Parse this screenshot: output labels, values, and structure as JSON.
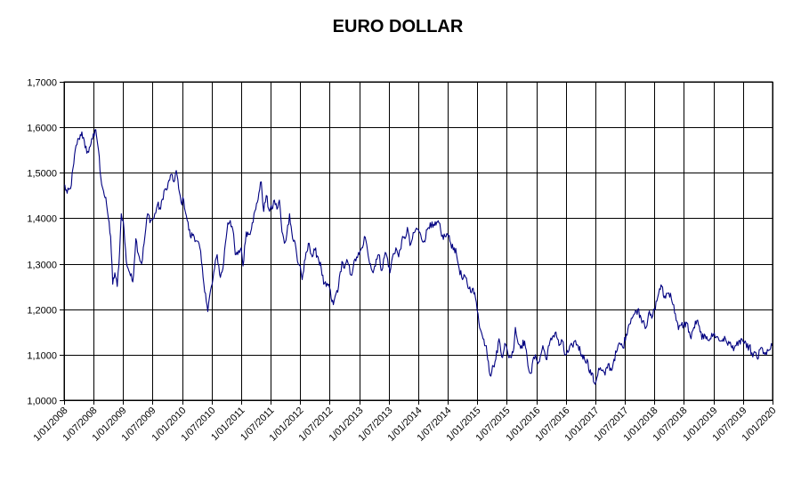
{
  "chart_data": {
    "type": "line",
    "title": "EURO DOLLAR",
    "xlabel": "",
    "ylabel": "",
    "ylim": [
      1.0,
      1.7
    ],
    "xlim": [
      "2008-01-01",
      "2020-01-01"
    ],
    "grid": true,
    "y_ticks": [
      1.0,
      1.1,
      1.2,
      1.3,
      1.4,
      1.5,
      1.6,
      1.7
    ],
    "y_tick_labels": [
      "1,0000",
      "1,1000",
      "1,2000",
      "1,3000",
      "1,4000",
      "1,5000",
      "1,6000",
      "1,7000"
    ],
    "x_ticks": [
      "2008-01-01",
      "2008-07-01",
      "2009-01-01",
      "2009-07-01",
      "2010-01-01",
      "2010-07-01",
      "2011-01-01",
      "2011-07-01",
      "2012-01-01",
      "2012-07-01",
      "2013-01-01",
      "2013-07-01",
      "2014-01-01",
      "2014-07-01",
      "2015-01-01",
      "2015-07-01",
      "2016-01-01",
      "2016-07-01",
      "2017-01-01",
      "2017-07-01",
      "2018-01-01",
      "2018-07-01",
      "2019-01-01",
      "2019-07-01",
      "2020-01-01"
    ],
    "x_tick_labels": [
      "1/01/2008",
      "1/07/2008",
      "1/01/2009",
      "1/07/2009",
      "1/01/2010",
      "1/07/2010",
      "1/01/2011",
      "1/07/2011",
      "1/01/2012",
      "1/07/2012",
      "1/01/2013",
      "1/07/2013",
      "1/01/2014",
      "1/07/2014",
      "1/01/2015",
      "1/07/2015",
      "1/01/2016",
      "1/07/2016",
      "1/01/2017",
      "1/07/2017",
      "1/01/2018",
      "1/07/2018",
      "1/01/2019",
      "1/07/2019",
      "1/01/2020"
    ],
    "series": [
      {
        "color": "#000080",
        "points": [
          [
            "2008-01-01",
            1.475
          ],
          [
            "2008-01-20",
            1.455
          ],
          [
            "2008-02-10",
            1.465
          ],
          [
            "2008-03-01",
            1.52
          ],
          [
            "2008-03-15",
            1.56
          ],
          [
            "2008-04-01",
            1.575
          ],
          [
            "2008-04-20",
            1.59
          ],
          [
            "2008-05-10",
            1.555
          ],
          [
            "2008-06-01",
            1.545
          ],
          [
            "2008-06-20",
            1.575
          ],
          [
            "2008-07-05",
            1.58
          ],
          [
            "2008-07-15",
            1.595
          ],
          [
            "2008-08-01",
            1.55
          ],
          [
            "2008-08-15",
            1.49
          ],
          [
            "2008-09-01",
            1.46
          ],
          [
            "2008-09-20",
            1.43
          ],
          [
            "2008-10-01",
            1.4
          ],
          [
            "2008-10-15",
            1.36
          ],
          [
            "2008-10-28",
            1.255
          ],
          [
            "2008-11-10",
            1.28
          ],
          [
            "2008-11-25",
            1.25
          ],
          [
            "2008-12-10",
            1.33
          ],
          [
            "2008-12-20",
            1.41
          ],
          [
            "2009-01-01",
            1.395
          ],
          [
            "2009-01-20",
            1.305
          ],
          [
            "2009-02-10",
            1.28
          ],
          [
            "2009-03-01",
            1.26
          ],
          [
            "2009-03-20",
            1.355
          ],
          [
            "2009-04-10",
            1.315
          ],
          [
            "2009-04-25",
            1.3
          ],
          [
            "2009-05-15",
            1.36
          ],
          [
            "2009-06-01",
            1.41
          ],
          [
            "2009-06-20",
            1.395
          ],
          [
            "2009-07-10",
            1.4
          ],
          [
            "2009-08-01",
            1.43
          ],
          [
            "2009-08-20",
            1.42
          ],
          [
            "2009-09-10",
            1.46
          ],
          [
            "2009-10-01",
            1.465
          ],
          [
            "2009-10-20",
            1.495
          ],
          [
            "2009-11-10",
            1.48
          ],
          [
            "2009-11-25",
            1.505
          ],
          [
            "2009-12-10",
            1.465
          ],
          [
            "2009-12-25",
            1.435
          ],
          [
            "2010-01-10",
            1.44
          ],
          [
            "2010-02-01",
            1.395
          ],
          [
            "2010-02-20",
            1.36
          ],
          [
            "2010-03-10",
            1.365
          ],
          [
            "2010-04-01",
            1.35
          ],
          [
            "2010-04-20",
            1.335
          ],
          [
            "2010-05-10",
            1.27
          ],
          [
            "2010-05-25",
            1.235
          ],
          [
            "2010-06-08",
            1.195
          ],
          [
            "2010-06-20",
            1.23
          ],
          [
            "2010-07-05",
            1.255
          ],
          [
            "2010-07-20",
            1.29
          ],
          [
            "2010-08-05",
            1.32
          ],
          [
            "2010-08-25",
            1.27
          ],
          [
            "2010-09-10",
            1.29
          ],
          [
            "2010-09-25",
            1.345
          ],
          [
            "2010-10-10",
            1.39
          ],
          [
            "2010-10-25",
            1.395
          ],
          [
            "2010-11-10",
            1.375
          ],
          [
            "2010-11-25",
            1.32
          ],
          [
            "2010-12-10",
            1.32
          ],
          [
            "2011-01-01",
            1.335
          ],
          [
            "2011-01-12",
            1.295
          ],
          [
            "2011-02-01",
            1.37
          ],
          [
            "2011-02-20",
            1.365
          ],
          [
            "2011-03-10",
            1.39
          ],
          [
            "2011-04-01",
            1.42
          ],
          [
            "2011-04-20",
            1.455
          ],
          [
            "2011-05-05",
            1.48
          ],
          [
            "2011-05-20",
            1.415
          ],
          [
            "2011-06-05",
            1.45
          ],
          [
            "2011-06-20",
            1.42
          ],
          [
            "2011-07-10",
            1.42
          ],
          [
            "2011-07-25",
            1.44
          ],
          [
            "2011-08-10",
            1.42
          ],
          [
            "2011-08-25",
            1.44
          ],
          [
            "2011-09-10",
            1.37
          ],
          [
            "2011-09-25",
            1.345
          ],
          [
            "2011-10-10",
            1.365
          ],
          [
            "2011-10-27",
            1.41
          ],
          [
            "2011-11-15",
            1.355
          ],
          [
            "2011-12-01",
            1.345
          ],
          [
            "2011-12-15",
            1.305
          ],
          [
            "2012-01-01",
            1.295
          ],
          [
            "2012-01-13",
            1.265
          ],
          [
            "2012-02-01",
            1.31
          ],
          [
            "2012-02-25",
            1.345
          ],
          [
            "2012-03-15",
            1.315
          ],
          [
            "2012-04-01",
            1.33
          ],
          [
            "2012-04-20",
            1.315
          ],
          [
            "2012-05-10",
            1.29
          ],
          [
            "2012-05-25",
            1.255
          ],
          [
            "2012-06-10",
            1.25
          ],
          [
            "2012-06-25",
            1.255
          ],
          [
            "2012-07-10",
            1.225
          ],
          [
            "2012-07-24",
            1.21
          ],
          [
            "2012-08-10",
            1.235
          ],
          [
            "2012-08-25",
            1.25
          ],
          [
            "2012-09-15",
            1.305
          ],
          [
            "2012-10-01",
            1.29
          ],
          [
            "2012-10-20",
            1.305
          ],
          [
            "2012-11-10",
            1.275
          ],
          [
            "2012-11-25",
            1.295
          ],
          [
            "2012-12-15",
            1.315
          ],
          [
            "2013-01-01",
            1.32
          ],
          [
            "2013-01-20",
            1.335
          ],
          [
            "2013-02-01",
            1.36
          ],
          [
            "2013-02-20",
            1.33
          ],
          [
            "2013-03-10",
            1.3
          ],
          [
            "2013-03-27",
            1.28
          ],
          [
            "2013-04-15",
            1.31
          ],
          [
            "2013-05-01",
            1.32
          ],
          [
            "2013-05-20",
            1.285
          ],
          [
            "2013-06-10",
            1.325
          ],
          [
            "2013-06-25",
            1.31
          ],
          [
            "2013-07-09",
            1.28
          ],
          [
            "2013-07-25",
            1.315
          ],
          [
            "2013-08-15",
            1.335
          ],
          [
            "2013-09-01",
            1.315
          ],
          [
            "2013-09-20",
            1.35
          ],
          [
            "2013-10-10",
            1.355
          ],
          [
            "2013-10-25",
            1.38
          ],
          [
            "2013-11-10",
            1.34
          ],
          [
            "2013-11-25",
            1.355
          ],
          [
            "2013-12-15",
            1.375
          ],
          [
            "2014-01-01",
            1.375
          ],
          [
            "2014-01-20",
            1.355
          ],
          [
            "2014-02-05",
            1.35
          ],
          [
            "2014-02-25",
            1.375
          ],
          [
            "2014-03-15",
            1.39
          ],
          [
            "2014-04-01",
            1.38
          ],
          [
            "2014-04-20",
            1.385
          ],
          [
            "2014-05-08",
            1.39
          ],
          [
            "2014-05-25",
            1.36
          ],
          [
            "2014-06-15",
            1.36
          ],
          [
            "2014-07-01",
            1.365
          ],
          [
            "2014-07-20",
            1.345
          ],
          [
            "2014-08-10",
            1.335
          ],
          [
            "2014-08-25",
            1.32
          ],
          [
            "2014-09-10",
            1.29
          ],
          [
            "2014-10-01",
            1.265
          ],
          [
            "2014-10-20",
            1.27
          ],
          [
            "2014-11-10",
            1.245
          ],
          [
            "2014-12-01",
            1.245
          ],
          [
            "2014-12-20",
            1.225
          ],
          [
            "2015-01-05",
            1.19
          ],
          [
            "2015-01-20",
            1.155
          ],
          [
            "2015-02-05",
            1.135
          ],
          [
            "2015-02-25",
            1.12
          ],
          [
            "2015-03-10",
            1.085
          ],
          [
            "2015-03-20",
            1.055
          ],
          [
            "2015-04-10",
            1.075
          ],
          [
            "2015-04-25",
            1.09
          ],
          [
            "2015-05-15",
            1.135
          ],
          [
            "2015-06-01",
            1.095
          ],
          [
            "2015-06-20",
            1.125
          ],
          [
            "2015-07-10",
            1.1
          ],
          [
            "2015-07-25",
            1.095
          ],
          [
            "2015-08-10",
            1.105
          ],
          [
            "2015-08-24",
            1.16
          ],
          [
            "2015-09-10",
            1.125
          ],
          [
            "2015-10-01",
            1.12
          ],
          [
            "2015-10-20",
            1.13
          ],
          [
            "2015-11-10",
            1.075
          ],
          [
            "2015-12-02",
            1.06
          ],
          [
            "2015-12-15",
            1.095
          ],
          [
            "2016-01-01",
            1.09
          ],
          [
            "2016-01-20",
            1.085
          ],
          [
            "2016-02-10",
            1.12
          ],
          [
            "2016-03-01",
            1.09
          ],
          [
            "2016-03-20",
            1.12
          ],
          [
            "2016-04-10",
            1.14
          ],
          [
            "2016-05-01",
            1.15
          ],
          [
            "2016-05-20",
            1.12
          ],
          [
            "2016-06-10",
            1.13
          ],
          [
            "2016-06-24",
            1.1
          ],
          [
            "2016-07-15",
            1.105
          ],
          [
            "2016-08-10",
            1.12
          ],
          [
            "2016-08-25",
            1.13
          ],
          [
            "2016-09-15",
            1.12
          ],
          [
            "2016-10-10",
            1.1
          ],
          [
            "2016-10-25",
            1.09
          ],
          [
            "2016-11-10",
            1.09
          ],
          [
            "2016-11-25",
            1.06
          ],
          [
            "2016-12-10",
            1.06
          ],
          [
            "2016-12-20",
            1.04
          ],
          [
            "2017-01-03",
            1.04
          ],
          [
            "2017-01-20",
            1.07
          ],
          [
            "2017-02-10",
            1.065
          ],
          [
            "2017-03-01",
            1.055
          ],
          [
            "2017-03-20",
            1.08
          ],
          [
            "2017-04-10",
            1.065
          ],
          [
            "2017-04-25",
            1.09
          ],
          [
            "2017-05-15",
            1.11
          ],
          [
            "2017-06-01",
            1.125
          ],
          [
            "2017-06-20",
            1.115
          ],
          [
            "2017-07-10",
            1.145
          ],
          [
            "2017-07-25",
            1.165
          ],
          [
            "2017-08-10",
            1.18
          ],
          [
            "2017-09-01",
            1.19
          ],
          [
            "2017-09-20",
            1.2
          ],
          [
            "2017-10-10",
            1.18
          ],
          [
            "2017-10-25",
            1.175
          ],
          [
            "2017-11-10",
            1.16
          ],
          [
            "2017-11-25",
            1.19
          ],
          [
            "2017-12-15",
            1.18
          ],
          [
            "2018-01-01",
            1.2
          ],
          [
            "2018-01-20",
            1.225
          ],
          [
            "2018-02-01",
            1.245
          ],
          [
            "2018-02-15",
            1.25
          ],
          [
            "2018-03-01",
            1.225
          ],
          [
            "2018-03-20",
            1.235
          ],
          [
            "2018-04-10",
            1.235
          ],
          [
            "2018-04-25",
            1.21
          ],
          [
            "2018-05-10",
            1.19
          ],
          [
            "2018-05-29",
            1.155
          ],
          [
            "2018-06-15",
            1.165
          ],
          [
            "2018-07-01",
            1.165
          ],
          [
            "2018-07-20",
            1.17
          ],
          [
            "2018-08-15",
            1.135
          ],
          [
            "2018-09-01",
            1.16
          ],
          [
            "2018-09-20",
            1.175
          ],
          [
            "2018-10-10",
            1.15
          ],
          [
            "2018-11-01",
            1.135
          ],
          [
            "2018-11-20",
            1.14
          ],
          [
            "2018-12-10",
            1.135
          ],
          [
            "2019-01-01",
            1.145
          ],
          [
            "2019-01-20",
            1.14
          ],
          [
            "2019-02-10",
            1.13
          ],
          [
            "2019-03-01",
            1.135
          ],
          [
            "2019-03-20",
            1.13
          ],
          [
            "2019-04-10",
            1.125
          ],
          [
            "2019-04-25",
            1.115
          ],
          [
            "2019-05-15",
            1.12
          ],
          [
            "2019-06-01",
            1.12
          ],
          [
            "2019-06-25",
            1.135
          ],
          [
            "2019-07-10",
            1.125
          ],
          [
            "2019-07-25",
            1.115
          ],
          [
            "2019-08-10",
            1.12
          ],
          [
            "2019-09-01",
            1.095
          ],
          [
            "2019-09-20",
            1.105
          ],
          [
            "2019-10-01",
            1.09
          ],
          [
            "2019-10-20",
            1.115
          ],
          [
            "2019-11-10",
            1.105
          ],
          [
            "2019-11-25",
            1.1
          ],
          [
            "2019-12-10",
            1.11
          ],
          [
            "2019-12-30",
            1.12
          ]
        ]
      }
    ]
  }
}
